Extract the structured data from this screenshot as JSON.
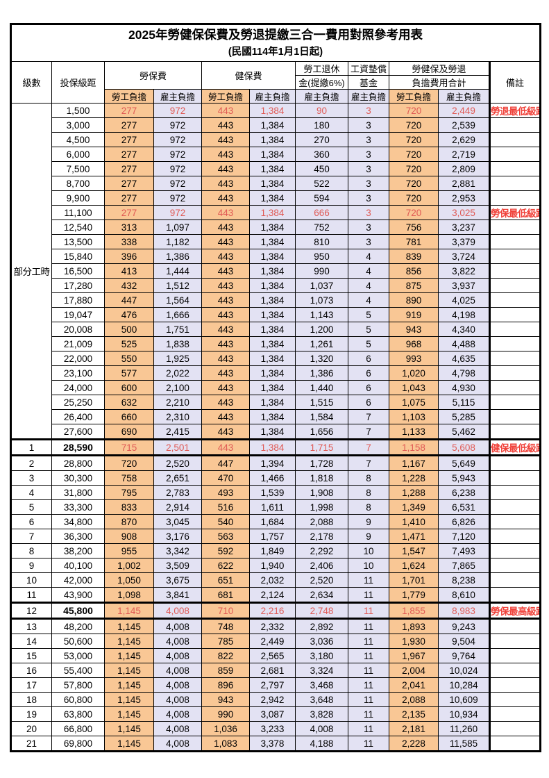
{
  "title": "2025年勞健保保費及勞退提繳三合一費用對照參考用表",
  "subtitle": "(民國114年1月1日起)",
  "colors": {
    "employee_bg": "#F9C795",
    "employer_bg": "#E3E2F3",
    "highlight_value_red": "#E05A55",
    "remark_red": "#F04038"
  },
  "columns": {
    "level": "級數",
    "bracket": "投保級距",
    "labor_insurance": "勞保費",
    "health_insurance": "健保費",
    "pension_line1": "勞工退休",
    "pension_line2": "金(提繳6%)",
    "wage_fund_line1": "工資墊償",
    "wage_fund_line2": "基金",
    "total_line1": "勞健保及勞退",
    "total_line2": "負擔費用合計",
    "remark": "備註",
    "employee_share": "勞工負擔",
    "employer_share": "雇主負擔"
  },
  "rows": [
    {
      "level": "部分工時",
      "rowspan": 23,
      "bracket": "1,500",
      "cells": [
        "277",
        "972",
        "443",
        "1,384",
        "90",
        "3",
        "720",
        "2,449"
      ],
      "remark": "勞退最低級距",
      "red": true,
      "bold": false,
      "thick": false
    },
    {
      "level": null,
      "bracket": "3,000",
      "cells": [
        "277",
        "972",
        "443",
        "1,384",
        "180",
        "3",
        "720",
        "2,539"
      ],
      "remark": "",
      "red": false,
      "bold": false,
      "thick": false
    },
    {
      "level": null,
      "bracket": "4,500",
      "cells": [
        "277",
        "972",
        "443",
        "1,384",
        "270",
        "3",
        "720",
        "2,629"
      ],
      "remark": "",
      "red": false,
      "bold": false,
      "thick": false
    },
    {
      "level": null,
      "bracket": "6,000",
      "cells": [
        "277",
        "972",
        "443",
        "1,384",
        "360",
        "3",
        "720",
        "2,719"
      ],
      "remark": "",
      "red": false,
      "bold": false,
      "thick": false
    },
    {
      "level": null,
      "bracket": "7,500",
      "cells": [
        "277",
        "972",
        "443",
        "1,384",
        "450",
        "3",
        "720",
        "2,809"
      ],
      "remark": "",
      "red": false,
      "bold": false,
      "thick": false
    },
    {
      "level": null,
      "bracket": "8,700",
      "cells": [
        "277",
        "972",
        "443",
        "1,384",
        "522",
        "3",
        "720",
        "2,881"
      ],
      "remark": "",
      "red": false,
      "bold": false,
      "thick": false
    },
    {
      "level": null,
      "bracket": "9,900",
      "cells": [
        "277",
        "972",
        "443",
        "1,384",
        "594",
        "3",
        "720",
        "2,953"
      ],
      "remark": "",
      "red": false,
      "bold": false,
      "thick": false
    },
    {
      "level": null,
      "bracket": "11,100",
      "cells": [
        "277",
        "972",
        "443",
        "1,384",
        "666",
        "3",
        "720",
        "3,025"
      ],
      "remark": "勞保最低級距",
      "red": true,
      "bold": false,
      "thick": false
    },
    {
      "level": null,
      "bracket": "12,540",
      "cells": [
        "313",
        "1,097",
        "443",
        "1,384",
        "752",
        "3",
        "756",
        "3,237"
      ],
      "remark": "",
      "red": false,
      "bold": false,
      "thick": false
    },
    {
      "level": null,
      "bracket": "13,500",
      "cells": [
        "338",
        "1,182",
        "443",
        "1,384",
        "810",
        "3",
        "781",
        "3,379"
      ],
      "remark": "",
      "red": false,
      "bold": false,
      "thick": false
    },
    {
      "level": null,
      "bracket": "15,840",
      "cells": [
        "396",
        "1,386",
        "443",
        "1,384",
        "950",
        "4",
        "839",
        "3,724"
      ],
      "remark": "",
      "red": false,
      "bold": false,
      "thick": false
    },
    {
      "level": null,
      "bracket": "16,500",
      "cells": [
        "413",
        "1,444",
        "443",
        "1,384",
        "990",
        "4",
        "856",
        "3,822"
      ],
      "remark": "",
      "red": false,
      "bold": false,
      "thick": false
    },
    {
      "level": null,
      "bracket": "17,280",
      "cells": [
        "432",
        "1,512",
        "443",
        "1,384",
        "1,037",
        "4",
        "875",
        "3,937"
      ],
      "remark": "",
      "red": false,
      "bold": false,
      "thick": false
    },
    {
      "level": null,
      "bracket": "17,880",
      "cells": [
        "447",
        "1,564",
        "443",
        "1,384",
        "1,073",
        "4",
        "890",
        "4,025"
      ],
      "remark": "",
      "red": false,
      "bold": false,
      "thick": false
    },
    {
      "level": null,
      "bracket": "19,047",
      "cells": [
        "476",
        "1,666",
        "443",
        "1,384",
        "1,143",
        "5",
        "919",
        "4,198"
      ],
      "remark": "",
      "red": false,
      "bold": false,
      "thick": false
    },
    {
      "level": null,
      "bracket": "20,008",
      "cells": [
        "500",
        "1,751",
        "443",
        "1,384",
        "1,200",
        "5",
        "943",
        "4,340"
      ],
      "remark": "",
      "red": false,
      "bold": false,
      "thick": false
    },
    {
      "level": null,
      "bracket": "21,009",
      "cells": [
        "525",
        "1,838",
        "443",
        "1,384",
        "1,261",
        "5",
        "968",
        "4,488"
      ],
      "remark": "",
      "red": false,
      "bold": false,
      "thick": false
    },
    {
      "level": null,
      "bracket": "22,000",
      "cells": [
        "550",
        "1,925",
        "443",
        "1,384",
        "1,320",
        "6",
        "993",
        "4,635"
      ],
      "remark": "",
      "red": false,
      "bold": false,
      "thick": false
    },
    {
      "level": null,
      "bracket": "23,100",
      "cells": [
        "577",
        "2,022",
        "443",
        "1,384",
        "1,386",
        "6",
        "1,020",
        "4,798"
      ],
      "remark": "",
      "red": false,
      "bold": false,
      "thick": false
    },
    {
      "level": null,
      "bracket": "24,000",
      "cells": [
        "600",
        "2,100",
        "443",
        "1,384",
        "1,440",
        "6",
        "1,043",
        "4,930"
      ],
      "remark": "",
      "red": false,
      "bold": false,
      "thick": false
    },
    {
      "level": null,
      "bracket": "25,250",
      "cells": [
        "632",
        "2,210",
        "443",
        "1,384",
        "1,515",
        "6",
        "1,075",
        "5,115"
      ],
      "remark": "",
      "red": false,
      "bold": false,
      "thick": false
    },
    {
      "level": null,
      "bracket": "26,400",
      "cells": [
        "660",
        "2,310",
        "443",
        "1,384",
        "1,584",
        "7",
        "1,103",
        "5,285"
      ],
      "remark": "",
      "red": false,
      "bold": false,
      "thick": false
    },
    {
      "level": null,
      "bracket": "27,600",
      "cells": [
        "690",
        "2,415",
        "443",
        "1,384",
        "1,656",
        "7",
        "1,133",
        "5,462"
      ],
      "remark": "",
      "red": false,
      "bold": false,
      "thick": false
    },
    {
      "level": "1",
      "bracket": "28,590",
      "cells": [
        "715",
        "2,501",
        "443",
        "1,384",
        "1,715",
        "7",
        "1,158",
        "5,608"
      ],
      "remark": "健保最低級距",
      "red": true,
      "bold": true,
      "thick": true
    },
    {
      "level": "2",
      "bracket": "28,800",
      "cells": [
        "720",
        "2,520",
        "447",
        "1,394",
        "1,728",
        "7",
        "1,167",
        "5,649"
      ],
      "remark": "",
      "red": false,
      "bold": false,
      "thick": false
    },
    {
      "level": "3",
      "bracket": "30,300",
      "cells": [
        "758",
        "2,651",
        "470",
        "1,466",
        "1,818",
        "8",
        "1,228",
        "5,943"
      ],
      "remark": "",
      "red": false,
      "bold": false,
      "thick": false
    },
    {
      "level": "4",
      "bracket": "31,800",
      "cells": [
        "795",
        "2,783",
        "493",
        "1,539",
        "1,908",
        "8",
        "1,288",
        "6,238"
      ],
      "remark": "",
      "red": false,
      "bold": false,
      "thick": false
    },
    {
      "level": "5",
      "bracket": "33,300",
      "cells": [
        "833",
        "2,914",
        "516",
        "1,611",
        "1,998",
        "8",
        "1,349",
        "6,531"
      ],
      "remark": "",
      "red": false,
      "bold": false,
      "thick": false
    },
    {
      "level": "6",
      "bracket": "34,800",
      "cells": [
        "870",
        "3,045",
        "540",
        "1,684",
        "2,088",
        "9",
        "1,410",
        "6,826"
      ],
      "remark": "",
      "red": false,
      "bold": false,
      "thick": false
    },
    {
      "level": "7",
      "bracket": "36,300",
      "cells": [
        "908",
        "3,176",
        "563",
        "1,757",
        "2,178",
        "9",
        "1,471",
        "7,120"
      ],
      "remark": "",
      "red": false,
      "bold": false,
      "thick": false
    },
    {
      "level": "8",
      "bracket": "38,200",
      "cells": [
        "955",
        "3,342",
        "592",
        "1,849",
        "2,292",
        "10",
        "1,547",
        "7,493"
      ],
      "remark": "",
      "red": false,
      "bold": false,
      "thick": false
    },
    {
      "level": "9",
      "bracket": "40,100",
      "cells": [
        "1,002",
        "3,509",
        "622",
        "1,940",
        "2,406",
        "10",
        "1,624",
        "7,865"
      ],
      "remark": "",
      "red": false,
      "bold": false,
      "thick": false
    },
    {
      "level": "10",
      "bracket": "42,000",
      "cells": [
        "1,050",
        "3,675",
        "651",
        "2,032",
        "2,520",
        "11",
        "1,701",
        "8,238"
      ],
      "remark": "",
      "red": false,
      "bold": false,
      "thick": false
    },
    {
      "level": "11",
      "bracket": "43,900",
      "cells": [
        "1,098",
        "3,841",
        "681",
        "2,124",
        "2,634",
        "11",
        "1,779",
        "8,610"
      ],
      "remark": "",
      "red": false,
      "bold": false,
      "thick": false
    },
    {
      "level": "12",
      "bracket": "45,800",
      "cells": [
        "1,145",
        "4,008",
        "710",
        "2,216",
        "2,748",
        "11",
        "1,855",
        "8,983"
      ],
      "remark": "勞保最高級距",
      "red": true,
      "bold": true,
      "thick": true
    },
    {
      "level": "13",
      "bracket": "48,200",
      "cells": [
        "1,145",
        "4,008",
        "748",
        "2,332",
        "2,892",
        "11",
        "1,893",
        "9,243"
      ],
      "remark": "",
      "red": false,
      "bold": false,
      "thick": false
    },
    {
      "level": "14",
      "bracket": "50,600",
      "cells": [
        "1,145",
        "4,008",
        "785",
        "2,449",
        "3,036",
        "11",
        "1,930",
        "9,504"
      ],
      "remark": "",
      "red": false,
      "bold": false,
      "thick": false
    },
    {
      "level": "15",
      "bracket": "53,000",
      "cells": [
        "1,145",
        "4,008",
        "822",
        "2,565",
        "3,180",
        "11",
        "1,967",
        "9,764"
      ],
      "remark": "",
      "red": false,
      "bold": false,
      "thick": false
    },
    {
      "level": "16",
      "bracket": "55,400",
      "cells": [
        "1,145",
        "4,008",
        "859",
        "2,681",
        "3,324",
        "11",
        "2,004",
        "10,024"
      ],
      "remark": "",
      "red": false,
      "bold": false,
      "thick": false
    },
    {
      "level": "17",
      "bracket": "57,800",
      "cells": [
        "1,145",
        "4,008",
        "896",
        "2,797",
        "3,468",
        "11",
        "2,041",
        "10,284"
      ],
      "remark": "",
      "red": false,
      "bold": false,
      "thick": false
    },
    {
      "level": "18",
      "bracket": "60,800",
      "cells": [
        "1,145",
        "4,008",
        "943",
        "2,942",
        "3,648",
        "11",
        "2,088",
        "10,609"
      ],
      "remark": "",
      "red": false,
      "bold": false,
      "thick": false
    },
    {
      "level": "19",
      "bracket": "63,800",
      "cells": [
        "1,145",
        "4,008",
        "990",
        "3,087",
        "3,828",
        "11",
        "2,135",
        "10,934"
      ],
      "remark": "",
      "red": false,
      "bold": false,
      "thick": false
    },
    {
      "level": "20",
      "bracket": "66,800",
      "cells": [
        "1,145",
        "4,008",
        "1,036",
        "3,233",
        "4,008",
        "11",
        "2,181",
        "11,260"
      ],
      "remark": "",
      "red": false,
      "bold": false,
      "thick": false
    },
    {
      "level": "21",
      "bracket": "69,800",
      "cells": [
        "1,145",
        "4,008",
        "1,083",
        "3,378",
        "4,188",
        "11",
        "2,228",
        "11,585"
      ],
      "remark": "",
      "red": false,
      "bold": false,
      "thick": false
    }
  ]
}
